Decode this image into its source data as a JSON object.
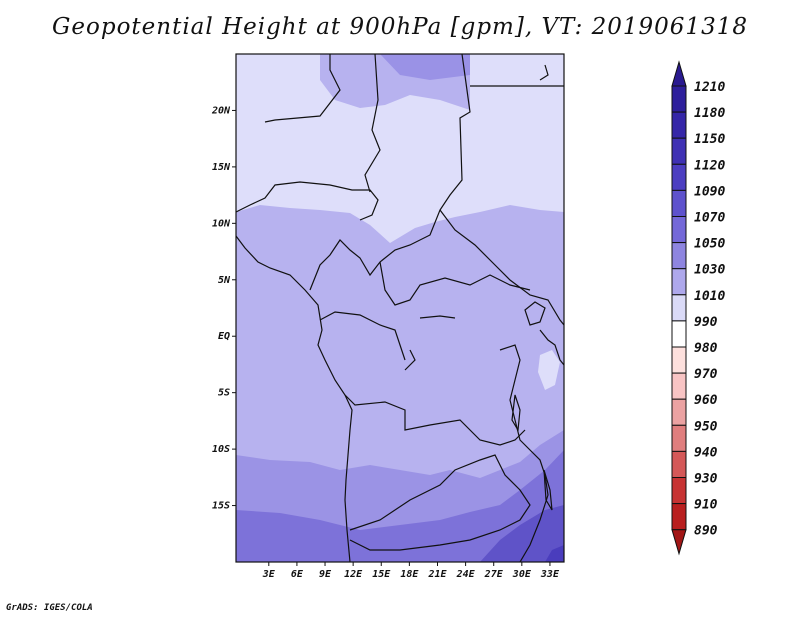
{
  "title": "Geopotential Height at 900hPa [gpm], VT: 2019061318",
  "credit": "GrADS: IGES/COLA",
  "chart_data": {
    "type": "heatmap",
    "variable": "Geopotential Height",
    "level": "900hPa",
    "units": "gpm",
    "valid_time": "2019061318",
    "map_region": "Central Africa",
    "xlim_lon": [
      -0.5,
      34.5
    ],
    "ylim_lat": [
      -20.0,
      25.0
    ],
    "x_ticks": [
      "3E",
      "6E",
      "9E",
      "12E",
      "15E",
      "18E",
      "21E",
      "24E",
      "27E",
      "30E",
      "33E"
    ],
    "x_tick_values": [
      3,
      6,
      9,
      12,
      15,
      18,
      21,
      24,
      27,
      30,
      33
    ],
    "y_ticks": [
      "20N",
      "15N",
      "10N",
      "5N",
      "EQ",
      "5S",
      "10S",
      "15S"
    ],
    "y_tick_values": [
      20,
      15,
      10,
      5,
      0,
      -5,
      -10,
      -15
    ],
    "colorbar": {
      "levels": [
        1210,
        1180,
        1150,
        1120,
        1090,
        1070,
        1050,
        1030,
        1010,
        990,
        980,
        970,
        960,
        950,
        940,
        930,
        910,
        890
      ],
      "colors": [
        "#2e1f9c",
        "#3526a8",
        "#3f31b4",
        "#4c3ec1",
        "#5e52cd",
        "#7468d8",
        "#8e85e0",
        "#aea8ec",
        "#dadaf7",
        "#ffffff",
        "#fde0dd",
        "#f8c4c4",
        "#eba2a2",
        "#e07e7e",
        "#d45858",
        "#c73333",
        "#b91f1f",
        "#a71818"
      ],
      "top_color": "#2a1a90",
      "bottom_color": "#a21616"
    },
    "field_bands": [
      {
        "region": "north of ~10N (Sahel/Sahara)",
        "range": "1010-1030"
      },
      {
        "region": "equatorial belt ~10N to ~8S",
        "range": "1030-1050"
      },
      {
        "region": "~8S to ~13S",
        "range": "1050-1070"
      },
      {
        "region": "south of ~13S / East Africa",
        "range": "1070-1090"
      },
      {
        "region": "far southeast corner",
        "range": "1090-1120"
      }
    ]
  }
}
